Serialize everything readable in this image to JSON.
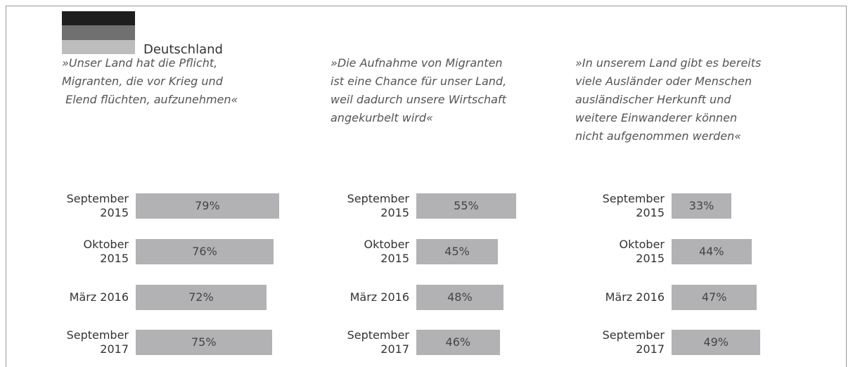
{
  "legend": {
    "label": "Deutschland"
  },
  "chart_data": [
    {
      "type": "bar",
      "title": "»Unser Land hat die Pflicht,\nMigranten, die vor Krieg und\n Elend flüchten, aufzunehmen«",
      "categories": [
        "September 2015",
        "Oktober 2015",
        "März 2016",
        "September 2017"
      ],
      "values": [
        79,
        76,
        72,
        75
      ],
      "value_labels": [
        "79%",
        "76%",
        "72%",
        "75%"
      ],
      "color": "#b2b2b4"
    },
    {
      "type": "bar",
      "title": "»Die Aufnahme von Migranten\nist eine Chance für unser Land,\nweil dadurch unsere Wirtschaft\nangekurbelt wird«",
      "categories": [
        "September 2015",
        "Oktober 2015",
        "März 2016",
        "September 2017"
      ],
      "values": [
        55,
        45,
        48,
        46
      ],
      "value_labels": [
        "55%",
        "45%",
        "48%",
        "46%"
      ],
      "color": "#b2b2b4"
    },
    {
      "type": "bar",
      "title": "»In unserem Land gibt es bereits\nviele Ausländer oder Menschen\nausländischer Herkunft und\nweitere Einwanderer können\nnicht aufgenommen werden«",
      "categories": [
        "September 2015",
        "Oktober 2015",
        "März 2016",
        "September 2017"
      ],
      "values": [
        33,
        44,
        47,
        49
      ],
      "value_labels": [
        "33%",
        "44%",
        "47%",
        "49%"
      ],
      "color": "#b2b2b4"
    }
  ]
}
